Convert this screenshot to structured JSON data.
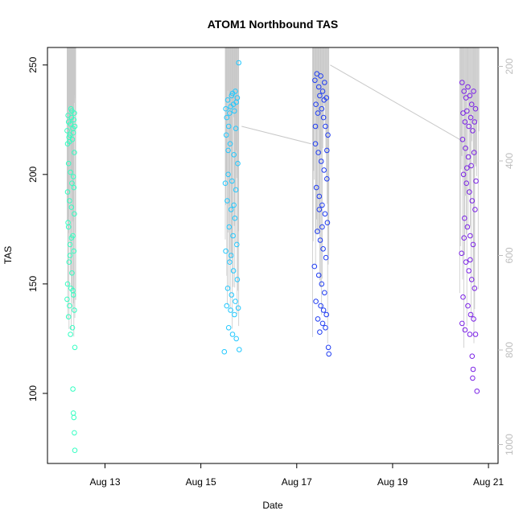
{
  "chart_data": {
    "type": "scatter",
    "title": "ATOM1 Northbound TAS",
    "xlabel": "Date",
    "ylabel": "TAS",
    "x_ticks": [
      "Aug 13",
      "Aug 15",
      "Aug 17",
      "Aug 19",
      "Aug 21"
    ],
    "x_tick_days": [
      13,
      15,
      17,
      19,
      21
    ],
    "xlim_days": [
      11.8,
      21.2
    ],
    "y_ticks": [
      100,
      150,
      200,
      250
    ],
    "ylim": [
      68,
      258
    ],
    "y2_ticks": [
      200,
      400,
      600,
      800,
      1000
    ],
    "y2lim": [
      1040,
      160
    ],
    "y2_color": "#bdbdbd",
    "trace_color": "#c8c8c8",
    "grid": false,
    "legend": "none",
    "series": [
      {
        "color": "#33ffc2",
        "x_center": 12.3,
        "x_spread": 0.09,
        "points": [
          [
            12.21,
            220
          ],
          [
            12.24,
            224
          ],
          [
            12.27,
            218
          ],
          [
            12.3,
            226
          ],
          [
            12.33,
            221
          ],
          [
            12.36,
            228
          ],
          [
            12.22,
            214
          ],
          [
            12.25,
            217
          ],
          [
            12.28,
            223
          ],
          [
            12.31,
            229
          ],
          [
            12.34,
            219
          ],
          [
            12.37,
            222
          ],
          [
            12.23,
            227
          ],
          [
            12.26,
            215
          ],
          [
            12.29,
            230
          ],
          [
            12.32,
            216
          ],
          [
            12.35,
            225
          ],
          [
            12.24,
            205
          ],
          [
            12.36,
            210
          ],
          [
            12.28,
            201
          ],
          [
            12.31,
            196
          ],
          [
            12.22,
            192
          ],
          [
            12.34,
            199
          ],
          [
            12.26,
            188
          ],
          [
            12.3,
            185
          ],
          [
            12.36,
            182
          ],
          [
            12.23,
            178
          ],
          [
            12.33,
            172
          ],
          [
            12.27,
            168
          ],
          [
            12.35,
            165
          ],
          [
            12.25,
            160
          ],
          [
            12.31,
            155
          ],
          [
            12.22,
            150
          ],
          [
            12.29,
            148
          ],
          [
            12.34,
            145
          ],
          [
            12.26,
            140
          ],
          [
            12.36,
            138
          ],
          [
            12.24,
            135
          ],
          [
            12.32,
            130
          ],
          [
            12.28,
            127
          ],
          [
            12.37,
            121
          ],
          [
            12.33,
            102
          ],
          [
            12.34,
            91
          ],
          [
            12.35,
            89
          ],
          [
            12.36,
            82
          ],
          [
            12.37,
            74
          ],
          [
            12.24,
            176
          ],
          [
            12.3,
            171
          ],
          [
            12.27,
            163
          ],
          [
            12.33,
            147
          ],
          [
            12.21,
            143
          ],
          [
            12.35,
            194
          ]
        ]
      },
      {
        "color": "#22c8ff",
        "x_center": 15.65,
        "x_spread": 0.14,
        "points": [
          [
            15.52,
            230
          ],
          [
            15.56,
            234
          ],
          [
            15.6,
            228
          ],
          [
            15.64,
            236
          ],
          [
            15.68,
            232
          ],
          [
            15.72,
            238
          ],
          [
            15.76,
            235
          ],
          [
            15.54,
            226
          ],
          [
            15.58,
            222
          ],
          [
            15.62,
            231
          ],
          [
            15.66,
            237
          ],
          [
            15.7,
            229
          ],
          [
            15.74,
            233
          ],
          [
            15.79,
            251
          ],
          [
            15.53,
            218
          ],
          [
            15.61,
            214
          ],
          [
            15.69,
            209
          ],
          [
            15.77,
            205
          ],
          [
            15.57,
            200
          ],
          [
            15.65,
            197
          ],
          [
            15.73,
            193
          ],
          [
            15.55,
            188
          ],
          [
            15.63,
            184
          ],
          [
            15.71,
            180
          ],
          [
            15.59,
            176
          ],
          [
            15.67,
            172
          ],
          [
            15.75,
            168
          ],
          [
            15.52,
            165
          ],
          [
            15.6,
            160
          ],
          [
            15.68,
            156
          ],
          [
            15.76,
            152
          ],
          [
            15.56,
            148
          ],
          [
            15.64,
            145
          ],
          [
            15.72,
            142
          ],
          [
            15.54,
            140
          ],
          [
            15.62,
            138
          ],
          [
            15.7,
            136
          ],
          [
            15.78,
            139
          ],
          [
            15.58,
            130
          ],
          [
            15.66,
            127
          ],
          [
            15.74,
            125
          ],
          [
            15.49,
            119
          ],
          [
            15.8,
            120
          ],
          [
            15.57,
            211
          ],
          [
            15.73,
            221
          ],
          [
            15.63,
            163
          ],
          [
            15.69,
            186
          ],
          [
            15.51,
            196
          ]
        ]
      },
      {
        "color": "#1f3cf2",
        "x_center": 17.5,
        "x_spread": 0.17,
        "points": [
          [
            17.38,
            243
          ],
          [
            17.42,
            246
          ],
          [
            17.46,
            240
          ],
          [
            17.5,
            245
          ],
          [
            17.54,
            238
          ],
          [
            17.58,
            242
          ],
          [
            17.62,
            235
          ],
          [
            17.4,
            232
          ],
          [
            17.44,
            228
          ],
          [
            17.48,
            236
          ],
          [
            17.52,
            230
          ],
          [
            17.56,
            226
          ],
          [
            17.6,
            222
          ],
          [
            17.65,
            218
          ],
          [
            17.39,
            214
          ],
          [
            17.45,
            210
          ],
          [
            17.51,
            206
          ],
          [
            17.57,
            202
          ],
          [
            17.63,
            198
          ],
          [
            17.41,
            194
          ],
          [
            17.47,
            190
          ],
          [
            17.53,
            186
          ],
          [
            17.59,
            182
          ],
          [
            17.64,
            178
          ],
          [
            17.43,
            174
          ],
          [
            17.49,
            170
          ],
          [
            17.55,
            166
          ],
          [
            17.61,
            162
          ],
          [
            17.37,
            158
          ],
          [
            17.46,
            154
          ],
          [
            17.52,
            150
          ],
          [
            17.58,
            146
          ],
          [
            17.4,
            142
          ],
          [
            17.5,
            140
          ],
          [
            17.56,
            138
          ],
          [
            17.62,
            136
          ],
          [
            17.44,
            134
          ],
          [
            17.54,
            132
          ],
          [
            17.6,
            130
          ],
          [
            17.48,
            128
          ],
          [
            17.66,
            121
          ],
          [
            17.67,
            118
          ],
          [
            17.39,
            222
          ],
          [
            17.57,
            234
          ],
          [
            17.63,
            211
          ],
          [
            17.47,
            184
          ],
          [
            17.53,
            176
          ]
        ]
      },
      {
        "color": "#7b22e6",
        "x_center": 20.6,
        "x_spread": 0.2,
        "points": [
          [
            20.45,
            242
          ],
          [
            20.49,
            238
          ],
          [
            20.53,
            235
          ],
          [
            20.57,
            240
          ],
          [
            20.61,
            236
          ],
          [
            20.65,
            232
          ],
          [
            20.69,
            238
          ],
          [
            20.73,
            230
          ],
          [
            20.47,
            228
          ],
          [
            20.51,
            224
          ],
          [
            20.55,
            229
          ],
          [
            20.59,
            222
          ],
          [
            20.63,
            226
          ],
          [
            20.67,
            220
          ],
          [
            20.71,
            224
          ],
          [
            20.46,
            216
          ],
          [
            20.52,
            212
          ],
          [
            20.58,
            208
          ],
          [
            20.64,
            204
          ],
          [
            20.7,
            210
          ],
          [
            20.48,
            200
          ],
          [
            20.54,
            196
          ],
          [
            20.6,
            192
          ],
          [
            20.66,
            188
          ],
          [
            20.72,
            184
          ],
          [
            20.5,
            180
          ],
          [
            20.56,
            176
          ],
          [
            20.62,
            172
          ],
          [
            20.68,
            168
          ],
          [
            20.44,
            164
          ],
          [
            20.53,
            160
          ],
          [
            20.59,
            156
          ],
          [
            20.65,
            152
          ],
          [
            20.71,
            148
          ],
          [
            20.47,
            144
          ],
          [
            20.57,
            140
          ],
          [
            20.63,
            136
          ],
          [
            20.69,
            134
          ],
          [
            20.45,
            132
          ],
          [
            20.51,
            129
          ],
          [
            20.61,
            127
          ],
          [
            20.73,
            127
          ],
          [
            20.66,
            117
          ],
          [
            20.68,
            111
          ],
          [
            20.67,
            107
          ],
          [
            20.76,
            101
          ],
          [
            20.55,
            203
          ],
          [
            20.74,
            197
          ],
          [
            20.62,
            161
          ],
          [
            20.49,
            171
          ]
        ]
      }
    ],
    "trace_connectors": [
      [
        15.85,
        222,
        17.3,
        214
      ],
      [
        17.7,
        250,
        20.4,
        216
      ]
    ]
  }
}
